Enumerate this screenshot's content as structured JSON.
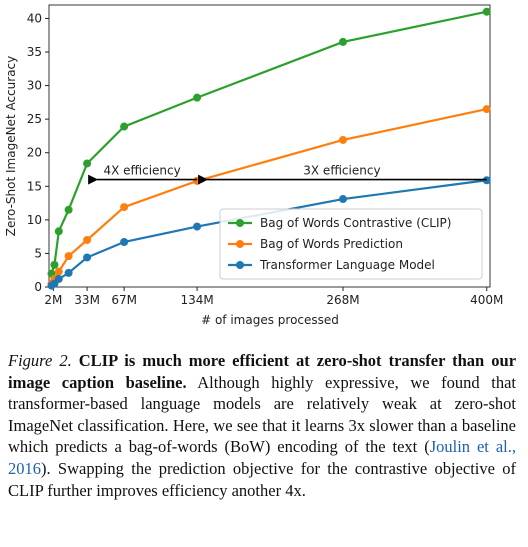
{
  "chart_data": {
    "type": "line",
    "xlabel": "# of images processed",
    "ylabel": "Zero-Shot ImageNet Accuracy",
    "x": [
      0.3,
      3,
      7,
      16,
      33,
      67,
      134,
      268,
      400
    ],
    "series": [
      {
        "name": "Bag of Words Contrastive (CLIP)",
        "color": "#2ca02c",
        "values": [
          2.0,
          3.3,
          8.3,
          11.5,
          18.4,
          23.9,
          28.2,
          36.5,
          41.0
        ]
      },
      {
        "name": "Bag of Words Prediction",
        "color": "#ff7f0e",
        "values": [
          0.5,
          1.2,
          2.3,
          4.6,
          7.0,
          11.9,
          15.8,
          21.9,
          26.5
        ]
      },
      {
        "name": "Transformer Language Model",
        "color": "#1f77b4",
        "values": [
          0.2,
          0.5,
          1.2,
          2.1,
          4.4,
          6.7,
          9.0,
          13.1,
          15.9
        ]
      }
    ],
    "xlim": [
      -2,
      403
    ],
    "xticks": [
      {
        "value": 2,
        "label": "2M"
      },
      {
        "value": 33,
        "label": "33M"
      },
      {
        "value": 67,
        "label": "67M"
      },
      {
        "value": 134,
        "label": "134M"
      },
      {
        "value": 268,
        "label": "268M"
      },
      {
        "value": 400,
        "label": "400M"
      }
    ],
    "ylim": [
      0,
      42
    ],
    "yticks": [
      0,
      5,
      10,
      15,
      20,
      25,
      30,
      35,
      40
    ],
    "legend": "lower right",
    "grid": false,
    "annotations": [
      {
        "text": "4X efficiency",
        "x_from": 134,
        "x_to": 33,
        "y": 16
      },
      {
        "text": "3X efficiency",
        "x_from": 400,
        "x_to": 134,
        "y": 16
      }
    ]
  },
  "caption": {
    "label": "Figure 2.",
    "headline": "CLIP is much more efficient at zero-shot transfer than our image caption baseline.",
    "body_1": "Although highly expressive, we found that transformer-based language models are relatively weak at zero-shot ImageNet classification. Here, we see that it learns 3x slower than a baseline which predicts a bag-of-words (BoW) encoding of the text (",
    "citation": "Joulin et al., 2016",
    "body_2": "). Swapping the prediction objective for the contrastive objective of CLIP further improves efficiency another 4x."
  }
}
